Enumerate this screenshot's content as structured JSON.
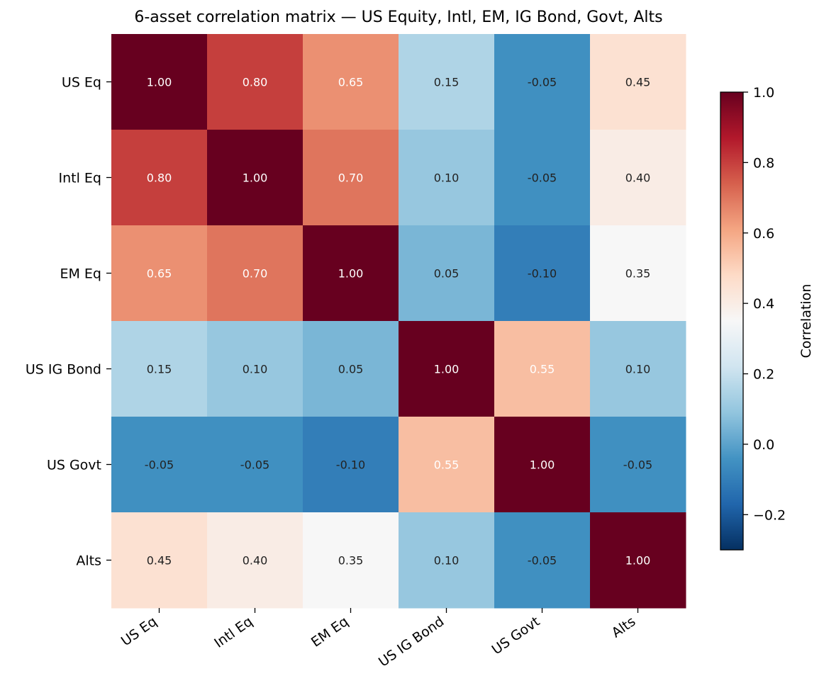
{
  "chart_data": {
    "type": "heatmap",
    "title": "6-asset correlation matrix — US Equity, Intl, EM, IG Bond, Govt, Alts",
    "row_labels": [
      "US Eq",
      "Intl Eq",
      "EM Eq",
      "US IG Bond",
      "US Govt",
      "Alts"
    ],
    "col_labels": [
      "US Eq",
      "Intl Eq",
      "EM Eq",
      "US IG Bond",
      "US Govt",
      "Alts"
    ],
    "values": [
      [
        1.0,
        0.8,
        0.65,
        0.15,
        -0.05,
        0.45
      ],
      [
        0.8,
        1.0,
        0.7,
        0.1,
        -0.05,
        0.4
      ],
      [
        0.65,
        0.7,
        1.0,
        0.05,
        -0.1,
        0.35
      ],
      [
        0.15,
        0.1,
        0.05,
        1.0,
        0.55,
        0.1
      ],
      [
        -0.05,
        -0.05,
        -0.1,
        0.55,
        1.0,
        -0.05
      ],
      [
        0.45,
        0.4,
        0.35,
        0.1,
        -0.05,
        1.0
      ]
    ],
    "value_format": "0.00",
    "colormap": "RdBu_r",
    "colorbar": {
      "label": "Correlation",
      "range": [
        -0.3,
        1.0
      ],
      "ticks": [
        -0.2,
        0.0,
        0.2,
        0.4,
        0.6,
        0.8,
        1.0
      ],
      "tick_labels": [
        "−0.2",
        "0.0",
        "0.2",
        "0.4",
        "0.6",
        "0.8",
        "1.0"
      ]
    }
  }
}
